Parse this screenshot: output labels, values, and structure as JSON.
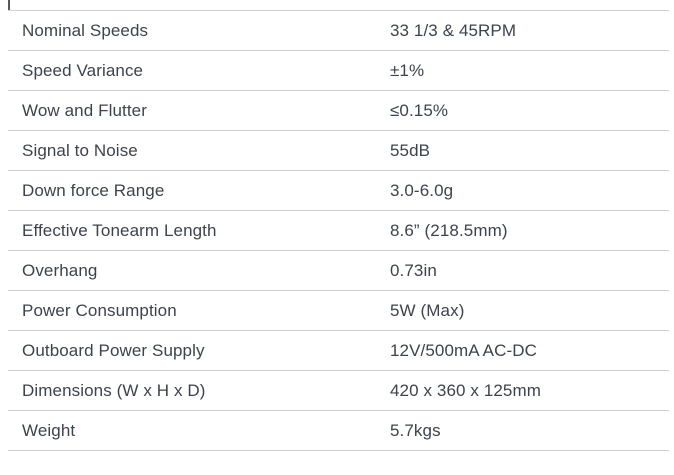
{
  "page": {
    "background_color": "#ffffff",
    "text_color": "#3d434c",
    "border_color": "#d2d2d2"
  },
  "table": {
    "rows": [
      {
        "label": "Nominal Speeds",
        "value": "33 1/3 & 45RPM"
      },
      {
        "label": "Speed Variance",
        "value": "±1%"
      },
      {
        "label": "Wow and Flutter",
        "value": "≤0.15%"
      },
      {
        "label": "Signal to Noise",
        "value": "55dB"
      },
      {
        "label": "Down force Range",
        "value": "3.0-6.0g"
      },
      {
        "label": "Effective Tonearm Length",
        "value": "8.6” (218.5mm)"
      },
      {
        "label": "Overhang",
        "value": "0.73in"
      },
      {
        "label": "Power Consumption",
        "value": "5W (Max)"
      },
      {
        "label": "Outboard Power Supply",
        "value": "12V/500mA AC-DC"
      },
      {
        "label": "Dimensions (W x H x D)",
        "value": "420 x 360 x 125mm"
      },
      {
        "label": "Weight",
        "value": "5.7kgs"
      }
    ]
  }
}
